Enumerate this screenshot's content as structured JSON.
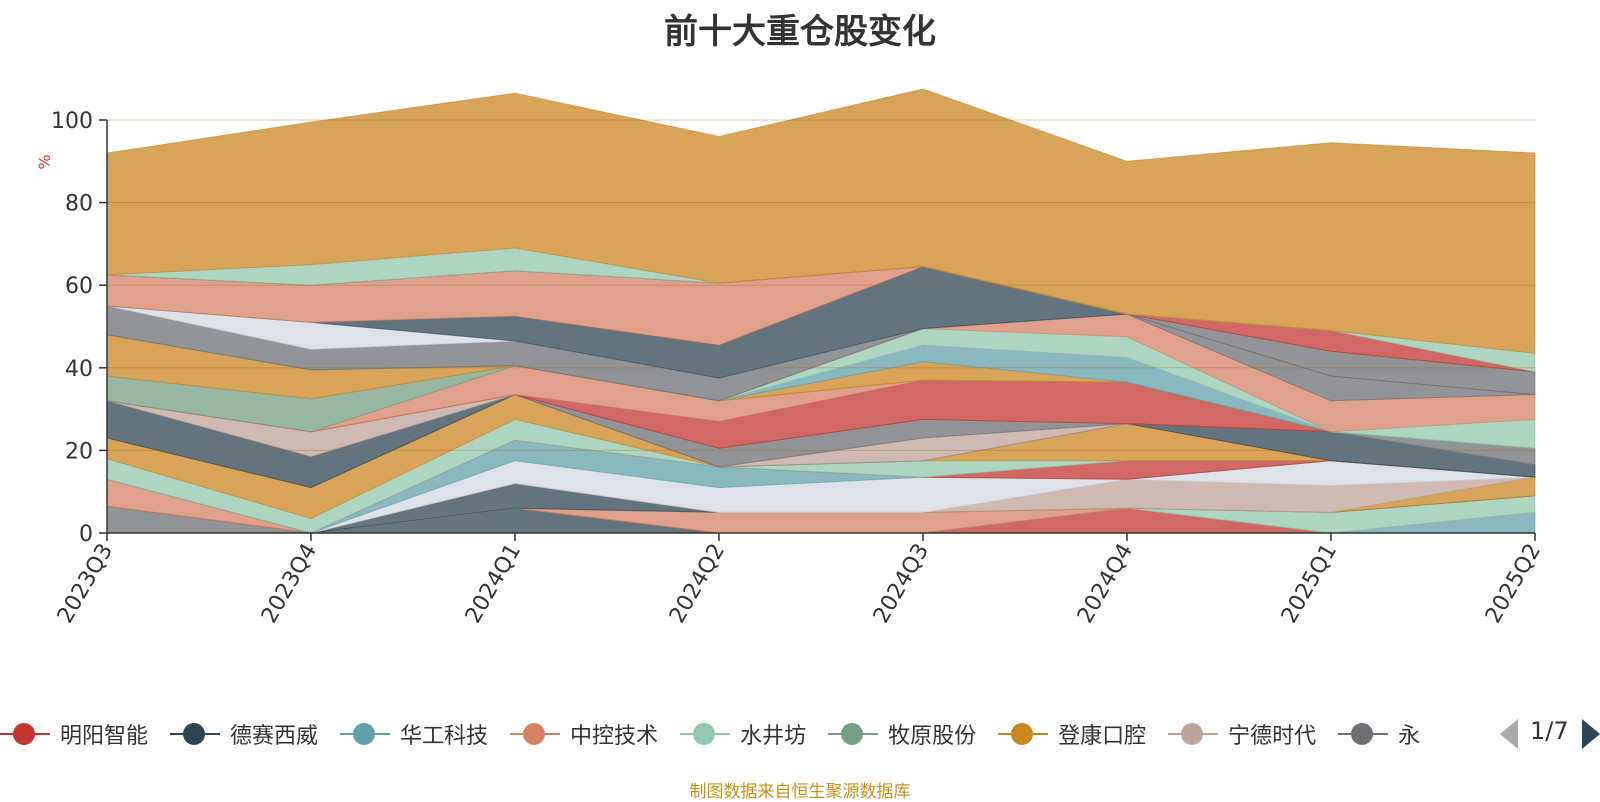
{
  "title": "前十大重仓股变化",
  "source_note": "制图数据来自恒生聚源数据库",
  "legend": {
    "items": [
      {
        "name": "明阳智能",
        "color": "#c23531"
      },
      {
        "name": "德赛西威",
        "color": "#2f4554"
      },
      {
        "name": "华工科技",
        "color": "#61a0a8"
      },
      {
        "name": "中控技术",
        "color": "#d48265"
      },
      {
        "name": "水井坊",
        "color": "#91c7ae"
      },
      {
        "name": "牧原股份",
        "color": "#749f83"
      },
      {
        "name": "登康口腔",
        "color": "#ca8622"
      },
      {
        "name": "宁德时代",
        "color": "#bda29a"
      },
      {
        "name": "永",
        "color": "#6e7074"
      }
    ],
    "page": "1/7"
  },
  "chart_data": {
    "type": "area",
    "stacked": true,
    "ylabel": "%",
    "ylim": [
      0,
      100
    ],
    "yticks": [
      0,
      20,
      40,
      60,
      80,
      100
    ],
    "grid": true,
    "legend_position": "bottom",
    "categories": [
      "2023Q3",
      "2023Q4",
      "2024Q1",
      "2024Q2",
      "2024Q3",
      "2024Q4",
      "2025Q1",
      "2025Q2"
    ],
    "series": [
      {
        "color": "#6e7074",
        "values": [
          6.5,
          0,
          0,
          0,
          0,
          0,
          0,
          0
        ]
      },
      {
        "color": "#2f4554",
        "values": [
          0,
          0,
          6,
          0,
          0,
          0,
          0,
          0
        ]
      },
      {
        "color": "#c23531",
        "values": [
          0,
          0,
          0,
          0,
          0,
          6,
          0,
          0
        ]
      },
      {
        "color": "#61a0a8",
        "values": [
          0,
          0,
          0,
          0,
          0,
          0,
          0,
          5
        ]
      },
      {
        "color": "#d48265",
        "values": [
          6.5,
          0,
          0,
          5,
          5,
          0,
          0,
          0
        ]
      },
      {
        "color": "#91c7ae",
        "values": [
          0,
          0,
          0,
          0,
          0,
          0,
          5,
          4
        ]
      },
      {
        "color": "#2f4554",
        "values": [
          0,
          0,
          6,
          0,
          0,
          0,
          0,
          0
        ]
      },
      {
        "color": "#ca8622",
        "values": [
          0,
          0,
          0,
          0,
          0,
          0,
          0,
          4.5
        ]
      },
      {
        "color": "#bda29a",
        "values": [
          0,
          0,
          0,
          0,
          0,
          7,
          6.5,
          0
        ]
      },
      {
        "color": "#d3d8e0",
        "values": [
          0,
          0,
          5.5,
          6,
          8.5,
          0,
          6,
          0
        ]
      },
      {
        "color": "#61a0a8",
        "values": [
          0,
          0,
          5,
          5,
          0,
          0,
          0,
          0
        ]
      },
      {
        "color": "#c23531",
        "values": [
          0,
          0,
          0,
          0,
          0,
          4.5,
          0,
          0
        ]
      },
      {
        "color": "#91c7ae",
        "values": [
          5,
          3.5,
          5,
          0,
          4,
          0,
          0,
          0
        ]
      },
      {
        "color": "#ca8622",
        "values": [
          5,
          7.5,
          6,
          0,
          0,
          9,
          0,
          0
        ]
      },
      {
        "color": "#2f4554",
        "values": [
          9,
          7.5,
          0,
          0,
          0,
          0,
          7,
          3
        ]
      },
      {
        "color": "#bda29a",
        "values": [
          0,
          6,
          0,
          0,
          5.5,
          0,
          0,
          0
        ]
      },
      {
        "color": "#6e7074",
        "values": [
          0,
          0,
          0,
          4.5,
          4.5,
          0,
          0,
          4
        ]
      },
      {
        "color": "#c23531",
        "values": [
          0,
          0,
          0,
          6.5,
          9.5,
          10,
          0,
          0
        ]
      },
      {
        "color": "#d48265",
        "values": [
          0,
          0,
          7,
          5,
          0,
          0,
          0,
          0
        ]
      },
      {
        "color": "#749f83",
        "values": [
          6,
          8,
          0,
          0,
          0,
          0,
          0,
          0
        ]
      },
      {
        "color": "#ca8622",
        "values": [
          10,
          7,
          0,
          0,
          4.5,
          0,
          0,
          0
        ]
      },
      {
        "color": "#61a0a8",
        "values": [
          0,
          0,
          0,
          0,
          4,
          6,
          0,
          0
        ]
      },
      {
        "color": "#91c7ae",
        "values": [
          0,
          0,
          0,
          0,
          4,
          5,
          0,
          7
        ]
      },
      {
        "color": "#d48265",
        "values": [
          0,
          0,
          0,
          0,
          0,
          5.5,
          7.5,
          6
        ]
      },
      {
        "color": "#6e7074",
        "values": [
          7,
          5,
          6,
          5.5,
          0,
          0,
          6,
          0
        ]
      },
      {
        "color": "#d3d8e0",
        "values": [
          0,
          6.5,
          0,
          0,
          0,
          0,
          0,
          0
        ]
      },
      {
        "color": "#2f4554",
        "values": [
          0,
          0,
          6,
          8,
          15,
          0,
          0,
          0
        ]
      },
      {
        "color": "#d48265",
        "values": [
          7.5,
          9,
          11,
          15,
          0,
          0,
          0,
          0
        ]
      },
      {
        "color": "#6e7074",
        "values": [
          0,
          0,
          0,
          0,
          0,
          0,
          6,
          5.5
        ]
      },
      {
        "color": "#c23531",
        "values": [
          0,
          0,
          0,
          0,
          0,
          0,
          5,
          0
        ]
      },
      {
        "color": "#91c7ae",
        "values": [
          0,
          5,
          5.5,
          0,
          0,
          0,
          0,
          4.5
        ]
      },
      {
        "color": "#ca8622",
        "values": [
          29.5,
          34.5,
          37.5,
          35.5,
          43,
          37,
          45.5,
          48.5
        ]
      }
    ]
  }
}
